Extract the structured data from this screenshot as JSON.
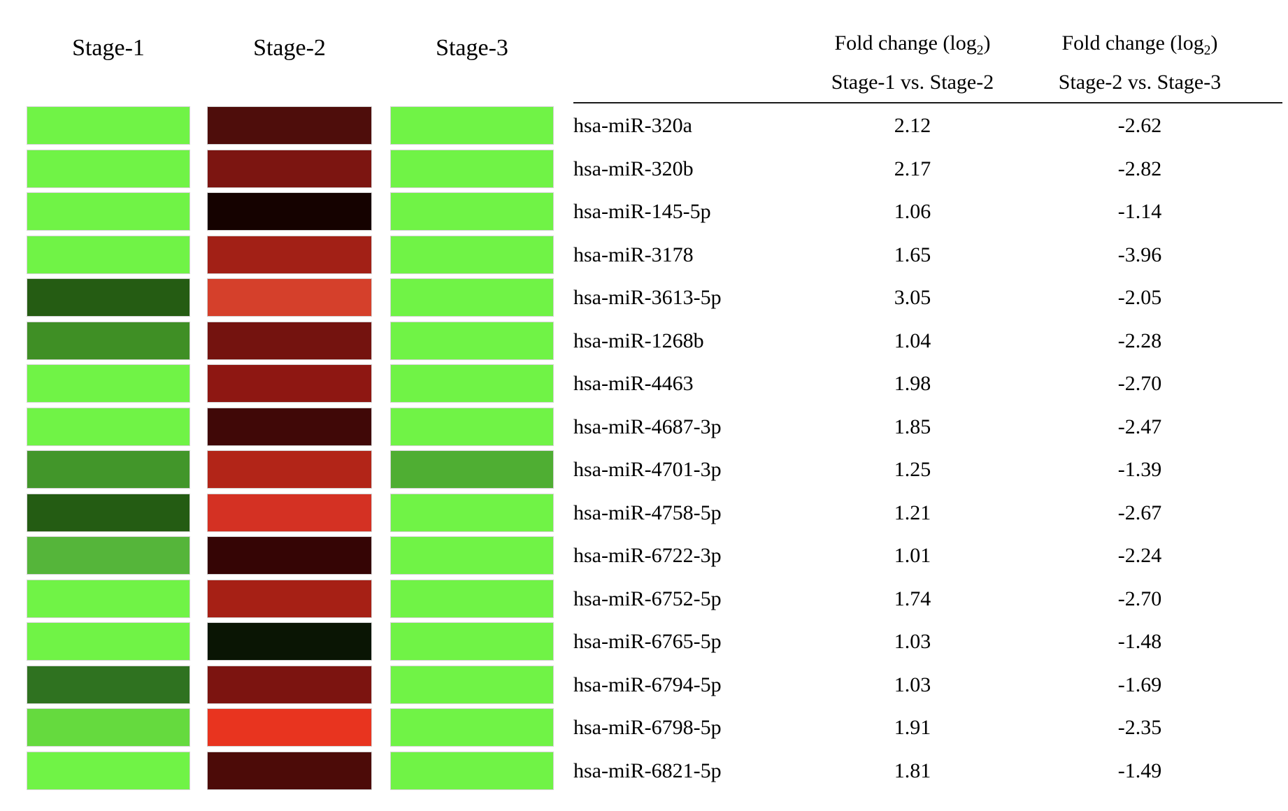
{
  "heatmap_header": {
    "stage1": "Stage-1",
    "stage2": "Stage-2",
    "stage3": "Stage-3"
  },
  "table_header": {
    "fc_prefix": "Fold change (log",
    "fc_sub": "2",
    "fc_suffix": ")",
    "comparison1": "Stage-1 vs. Stage-2",
    "comparison2": "Stage-2 vs. Stage-3"
  },
  "rows": [
    {
      "name": "hsa-miR-320a",
      "fc1": "2.12",
      "fc2": "-2.62",
      "c1": "#70f346",
      "c2": "#4e0d0b",
      "c3": "#70f346"
    },
    {
      "name": "hsa-miR-320b",
      "fc1": "2.17",
      "fc2": "-2.82",
      "c1": "#70f346",
      "c2": "#7c1511",
      "c3": "#70f346"
    },
    {
      "name": "hsa-miR-145-5p",
      "fc1": "1.06",
      "fc2": "-1.14",
      "c1": "#70f346",
      "c2": "#150200",
      "c3": "#70f346"
    },
    {
      "name": "hsa-miR-3178",
      "fc1": "1.65",
      "fc2": "-3.96",
      "c1": "#70f346",
      "c2": "#a22016",
      "c3": "#70f346"
    },
    {
      "name": "hsa-miR-3613-5p",
      "fc1": "3.05",
      "fc2": "-2.05",
      "c1": "#255c13",
      "c2": "#d5402b",
      "c3": "#70f346"
    },
    {
      "name": "hsa-miR-1268b",
      "fc1": "1.04",
      "fc2": "-2.28",
      "c1": "#3f8f25",
      "c2": "#74130f",
      "c3": "#70f346"
    },
    {
      "name": "hsa-miR-4463",
      "fc1": "1.98",
      "fc2": "-2.70",
      "c1": "#70f346",
      "c2": "#8e1712",
      "c3": "#70f346"
    },
    {
      "name": "hsa-miR-4687-3p",
      "fc1": "1.85",
      "fc2": "-2.47",
      "c1": "#70f346",
      "c2": "#400807",
      "c3": "#70f346"
    },
    {
      "name": "hsa-miR-4701-3p",
      "fc1": "1.25",
      "fc2": "-1.39",
      "c1": "#42962a",
      "c2": "#b22518",
      "c3": "#4fae33"
    },
    {
      "name": "hsa-miR-4758-5p",
      "fc1": "1.21",
      "fc2": "-2.67",
      "c1": "#245c13",
      "c2": "#d43123",
      "c3": "#70f346"
    },
    {
      "name": "hsa-miR-6722-3p",
      "fc1": "1.01",
      "fc2": "-2.24",
      "c1": "#55b53a",
      "c2": "#350505",
      "c3": "#70f346"
    },
    {
      "name": "hsa-miR-6752-5p",
      "fc1": "1.74",
      "fc2": "-2.70",
      "c1": "#70f346",
      "c2": "#a62015",
      "c3": "#70f346"
    },
    {
      "name": "hsa-miR-6765-5p",
      "fc1": "1.03",
      "fc2": "-1.48",
      "c1": "#70f346",
      "c2": "#0a1504",
      "c3": "#70f346"
    },
    {
      "name": "hsa-miR-6794-5p",
      "fc1": "1.03",
      "fc2": "-1.69",
      "c1": "#2f7220",
      "c2": "#7c1410",
      "c3": "#70f346"
    },
    {
      "name": "hsa-miR-6798-5p",
      "fc1": "1.91",
      "fc2": "-2.35",
      "c1": "#65da3e",
      "c2": "#e8341f",
      "c3": "#70f346"
    },
    {
      "name": "hsa-miR-6821-5p",
      "fc1": "1.81",
      "fc2": "-1.49",
      "c1": "#70f346",
      "c2": "#4c0b08",
      "c3": "#70f346"
    }
  ],
  "chart_data": {
    "type": "heatmap",
    "title": "",
    "columns": [
      "Stage-1",
      "Stage-2",
      "Stage-3"
    ],
    "rows": [
      "hsa-miR-320a",
      "hsa-miR-320b",
      "hsa-miR-145-5p",
      "hsa-miR-3178",
      "hsa-miR-3613-5p",
      "hsa-miR-1268b",
      "hsa-miR-4463",
      "hsa-miR-4687-3p",
      "hsa-miR-4701-3p",
      "hsa-miR-4758-5p",
      "hsa-miR-6722-3p",
      "hsa-miR-6752-5p",
      "hsa-miR-6765-5p",
      "hsa-miR-6794-5p",
      "hsa-miR-6798-5p",
      "hsa-miR-6821-5p"
    ],
    "cell_colors": [
      [
        "#70f346",
        "#4e0d0b",
        "#70f346"
      ],
      [
        "#70f346",
        "#7c1511",
        "#70f346"
      ],
      [
        "#70f346",
        "#150200",
        "#70f346"
      ],
      [
        "#70f346",
        "#a22016",
        "#70f346"
      ],
      [
        "#255c13",
        "#d5402b",
        "#70f346"
      ],
      [
        "#3f8f25",
        "#74130f",
        "#70f346"
      ],
      [
        "#70f346",
        "#8e1712",
        "#70f346"
      ],
      [
        "#70f346",
        "#400807",
        "#70f346"
      ],
      [
        "#42962a",
        "#b22518",
        "#4fae33"
      ],
      [
        "#245c13",
        "#d43123",
        "#70f346"
      ],
      [
        "#55b53a",
        "#350505",
        "#70f346"
      ],
      [
        "#70f346",
        "#a62015",
        "#70f346"
      ],
      [
        "#70f346",
        "#0a1504",
        "#70f346"
      ],
      [
        "#2f7220",
        "#7c1410",
        "#70f346"
      ],
      [
        "#65da3e",
        "#e8341f",
        "#70f346"
      ],
      [
        "#70f346",
        "#4c0b08",
        "#70f346"
      ]
    ],
    "fold_change": {
      "header": "Fold change (log2)",
      "comparisons": [
        "Stage-1 vs. Stage-2",
        "Stage-2 vs. Stage-3"
      ],
      "values": [
        [
          2.12,
          -2.62
        ],
        [
          2.17,
          -2.82
        ],
        [
          1.06,
          -1.14
        ],
        [
          1.65,
          -3.96
        ],
        [
          3.05,
          -2.05
        ],
        [
          1.04,
          -2.28
        ],
        [
          1.98,
          -2.7
        ],
        [
          1.85,
          -2.47
        ],
        [
          1.25,
          -1.39
        ],
        [
          1.21,
          -2.67
        ],
        [
          1.01,
          -2.24
        ],
        [
          1.74,
          -2.7
        ],
        [
          1.03,
          -1.48
        ],
        [
          1.03,
          -1.69
        ],
        [
          1.91,
          -2.35
        ],
        [
          1.81,
          -1.49
        ]
      ]
    },
    "layout": {
      "legend": false,
      "grid": false
    }
  }
}
